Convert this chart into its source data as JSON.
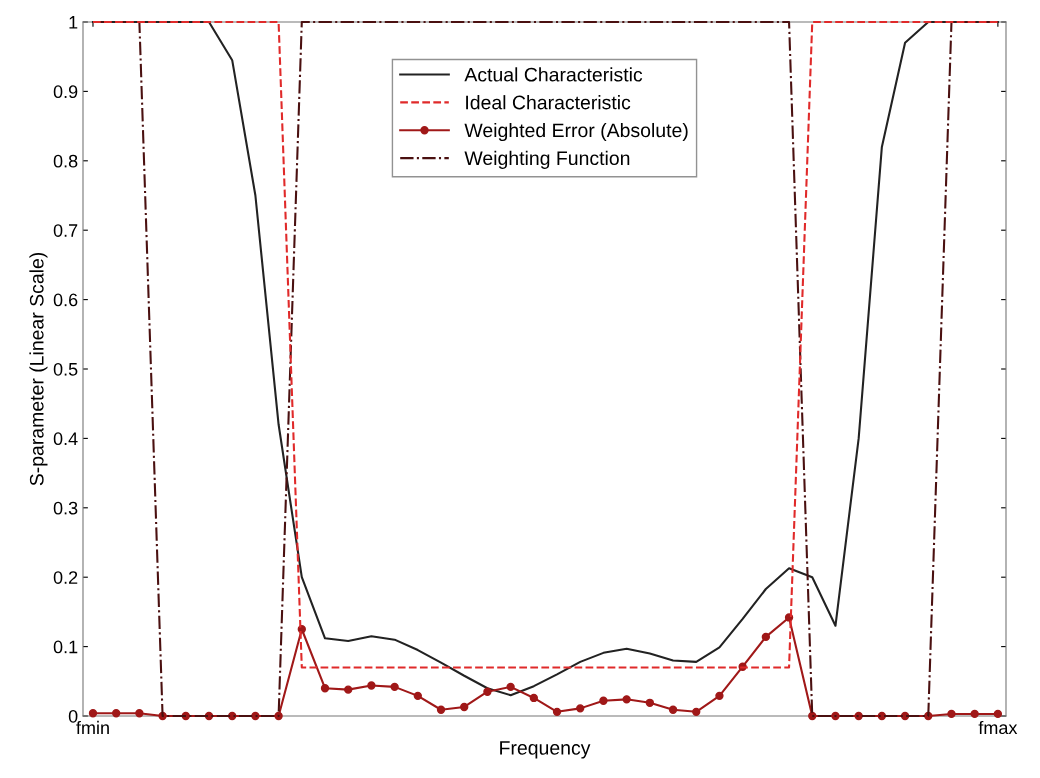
{
  "chart_data": {
    "type": "line",
    "xlabel": "Frequency",
    "ylabel": "S-parameter (Linear Scale)",
    "categories": [
      "fmin",
      null,
      null,
      null,
      null,
      null,
      null,
      null,
      null,
      null,
      null,
      null,
      null,
      null,
      null,
      null,
      null,
      null,
      null,
      null,
      null,
      null,
      null,
      null,
      null,
      null,
      null,
      null,
      null,
      null,
      null,
      null,
      null,
      null,
      null,
      null,
      null,
      null,
      null,
      "fmax"
    ],
    "ylim": [
      0,
      1
    ],
    "yticks": [
      0,
      0.1,
      0.2,
      0.3,
      0.4,
      0.5,
      0.6,
      0.7,
      0.8,
      0.9,
      1
    ],
    "grid": false,
    "legend": "top",
    "series": [
      {
        "name": "Actual Characteristic",
        "color": "#222222",
        "line_style": "solid",
        "marker": "none",
        "values": [
          1,
          1,
          1,
          1,
          1,
          1,
          0.945,
          0.75,
          0.42,
          0.2,
          0.112,
          0.108,
          0.115,
          0.11,
          0.095,
          0.077,
          0.058,
          0.04,
          0.03,
          0.043,
          0.06,
          0.078,
          0.091,
          0.097,
          0.09,
          0.08,
          0.078,
          0.099,
          0.14,
          0.183,
          0.213,
          0.2,
          0.13,
          0.4,
          0.82,
          0.97,
          1,
          1,
          1,
          1
        ]
      },
      {
        "name": "Ideal Characteristic",
        "color": "#e02a2a",
        "line_style": "dashed",
        "marker": "none",
        "values": [
          1,
          1,
          1,
          1,
          1,
          1,
          1,
          1,
          1,
          0.07,
          0.07,
          0.07,
          0.07,
          0.07,
          0.07,
          0.07,
          0.07,
          0.07,
          0.07,
          0.07,
          0.07,
          0.07,
          0.07,
          0.07,
          0.07,
          0.07,
          0.07,
          0.07,
          0.07,
          0.07,
          0.07,
          1,
          1,
          1,
          1,
          1,
          1,
          1,
          1,
          1
        ]
      },
      {
        "name": "Weighted Error (Absolute)",
        "color": "#a01818",
        "line_style": "solid",
        "marker": "circle",
        "values": [
          0.004,
          0.004,
          0.004,
          0,
          0,
          0,
          0,
          0,
          0,
          0.125,
          0.04,
          0.038,
          0.044,
          0.042,
          0.029,
          0.009,
          0.013,
          0.035,
          0.042,
          0.026,
          0.006,
          0.011,
          0.022,
          0.024,
          0.019,
          0.009,
          0.006,
          0.029,
          0.071,
          0.114,
          0.142,
          0,
          0,
          0,
          0,
          0,
          0,
          0.003,
          0.003,
          0.003
        ]
      },
      {
        "name": "Weighting Function",
        "color": "#4a1010",
        "line_style": "dashdot",
        "marker": "none",
        "values": [
          1,
          1,
          1,
          0,
          0,
          0,
          0,
          0,
          0,
          1,
          1,
          1,
          1,
          1,
          1,
          1,
          1,
          1,
          1,
          1,
          1,
          1,
          1,
          1,
          1,
          1,
          1,
          1,
          1,
          1,
          1,
          0,
          0,
          0,
          0,
          0,
          0,
          1,
          1,
          1
        ]
      }
    ]
  }
}
